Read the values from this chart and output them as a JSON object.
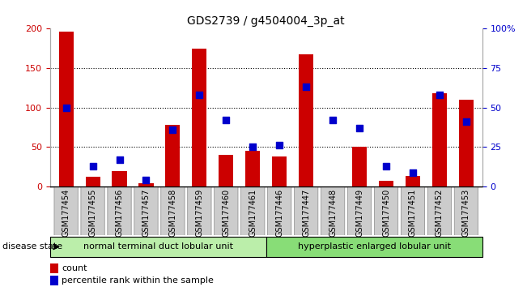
{
  "title": "GDS2739 / g4504004_3p_at",
  "samples": [
    "GSM177454",
    "GSM177455",
    "GSM177456",
    "GSM177457",
    "GSM177458",
    "GSM177459",
    "GSM177460",
    "GSM177461",
    "GSM177446",
    "GSM177447",
    "GSM177448",
    "GSM177449",
    "GSM177450",
    "GSM177451",
    "GSM177452",
    "GSM177453"
  ],
  "counts": [
    196,
    12,
    20,
    4,
    78,
    175,
    40,
    45,
    38,
    168,
    0,
    50,
    7,
    13,
    118,
    110
  ],
  "percentiles_raw": [
    50,
    13,
    17,
    4,
    36,
    58,
    42,
    25,
    26,
    63,
    42,
    37,
    13,
    9,
    58,
    41
  ],
  "left_ylim": [
    0,
    200
  ],
  "right_ylim": [
    0,
    100
  ],
  "left_yticks": [
    0,
    50,
    100,
    150,
    200
  ],
  "right_yticks": [
    0,
    25,
    50,
    75,
    100
  ],
  "right_yticklabels": [
    "0",
    "25",
    "50",
    "75",
    "100%"
  ],
  "bar_color": "#cc0000",
  "dot_color": "#0000cc",
  "group1_label": "normal terminal duct lobular unit",
  "group2_label": "hyperplastic enlarged lobular unit",
  "group1_color": "#bbeeaa",
  "group2_color": "#88dd77",
  "disease_state_label": "disease state",
  "legend_count_label": "count",
  "legend_pct_label": "percentile rank within the sample",
  "bar_width": 0.55,
  "dot_size": 28,
  "tick_color_left": "#cc0000",
  "tick_color_right": "#0000cc",
  "xlabel_fontsize": 7,
  "title_fontsize": 10
}
